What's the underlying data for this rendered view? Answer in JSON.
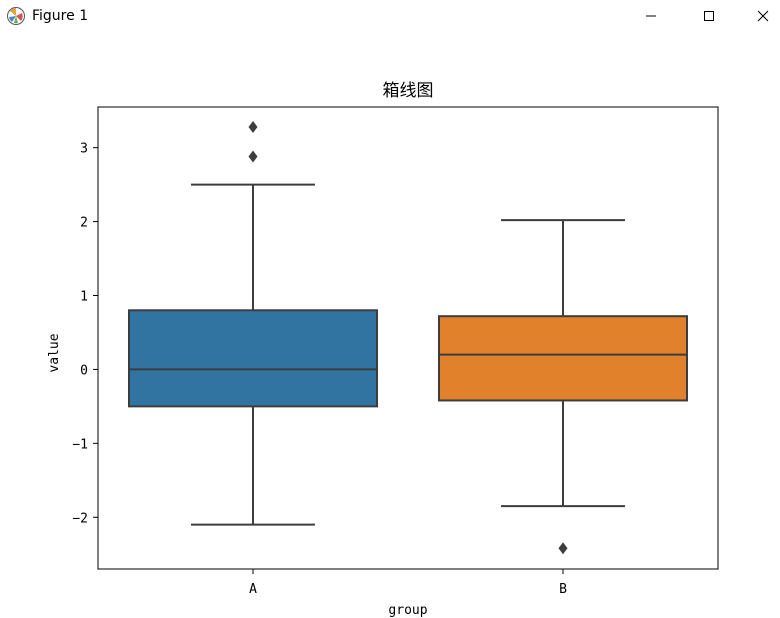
{
  "window": {
    "title": "Figure 1",
    "icons": [
      "matplotlib-figure-icon",
      "minimize-icon",
      "maximize-icon",
      "close-icon"
    ]
  },
  "chart_data": {
    "type": "box",
    "title": "箱线图",
    "xlabel": "group",
    "ylabel": "value",
    "categories": [
      "A",
      "B"
    ],
    "colors": [
      "#3274a1",
      "#e1812c"
    ],
    "ylim": [
      -2.7,
      3.55
    ],
    "yticks": [
      -2,
      -1,
      0,
      1,
      2,
      3
    ],
    "ytick_labels": [
      "−2",
      "−1",
      "0",
      "1",
      "2",
      "3"
    ],
    "grid": false,
    "boxes": [
      {
        "category": "A",
        "whisker_low": -2.1,
        "q1": -0.5,
        "median": 0.0,
        "q3": 0.8,
        "whisker_high": 2.5,
        "outliers": [
          3.28,
          2.88
        ]
      },
      {
        "category": "B",
        "whisker_low": -1.85,
        "q1": -0.42,
        "median": 0.2,
        "q3": 0.72,
        "whisker_high": 2.02,
        "outliers": [
          -2.42
        ]
      }
    ]
  }
}
